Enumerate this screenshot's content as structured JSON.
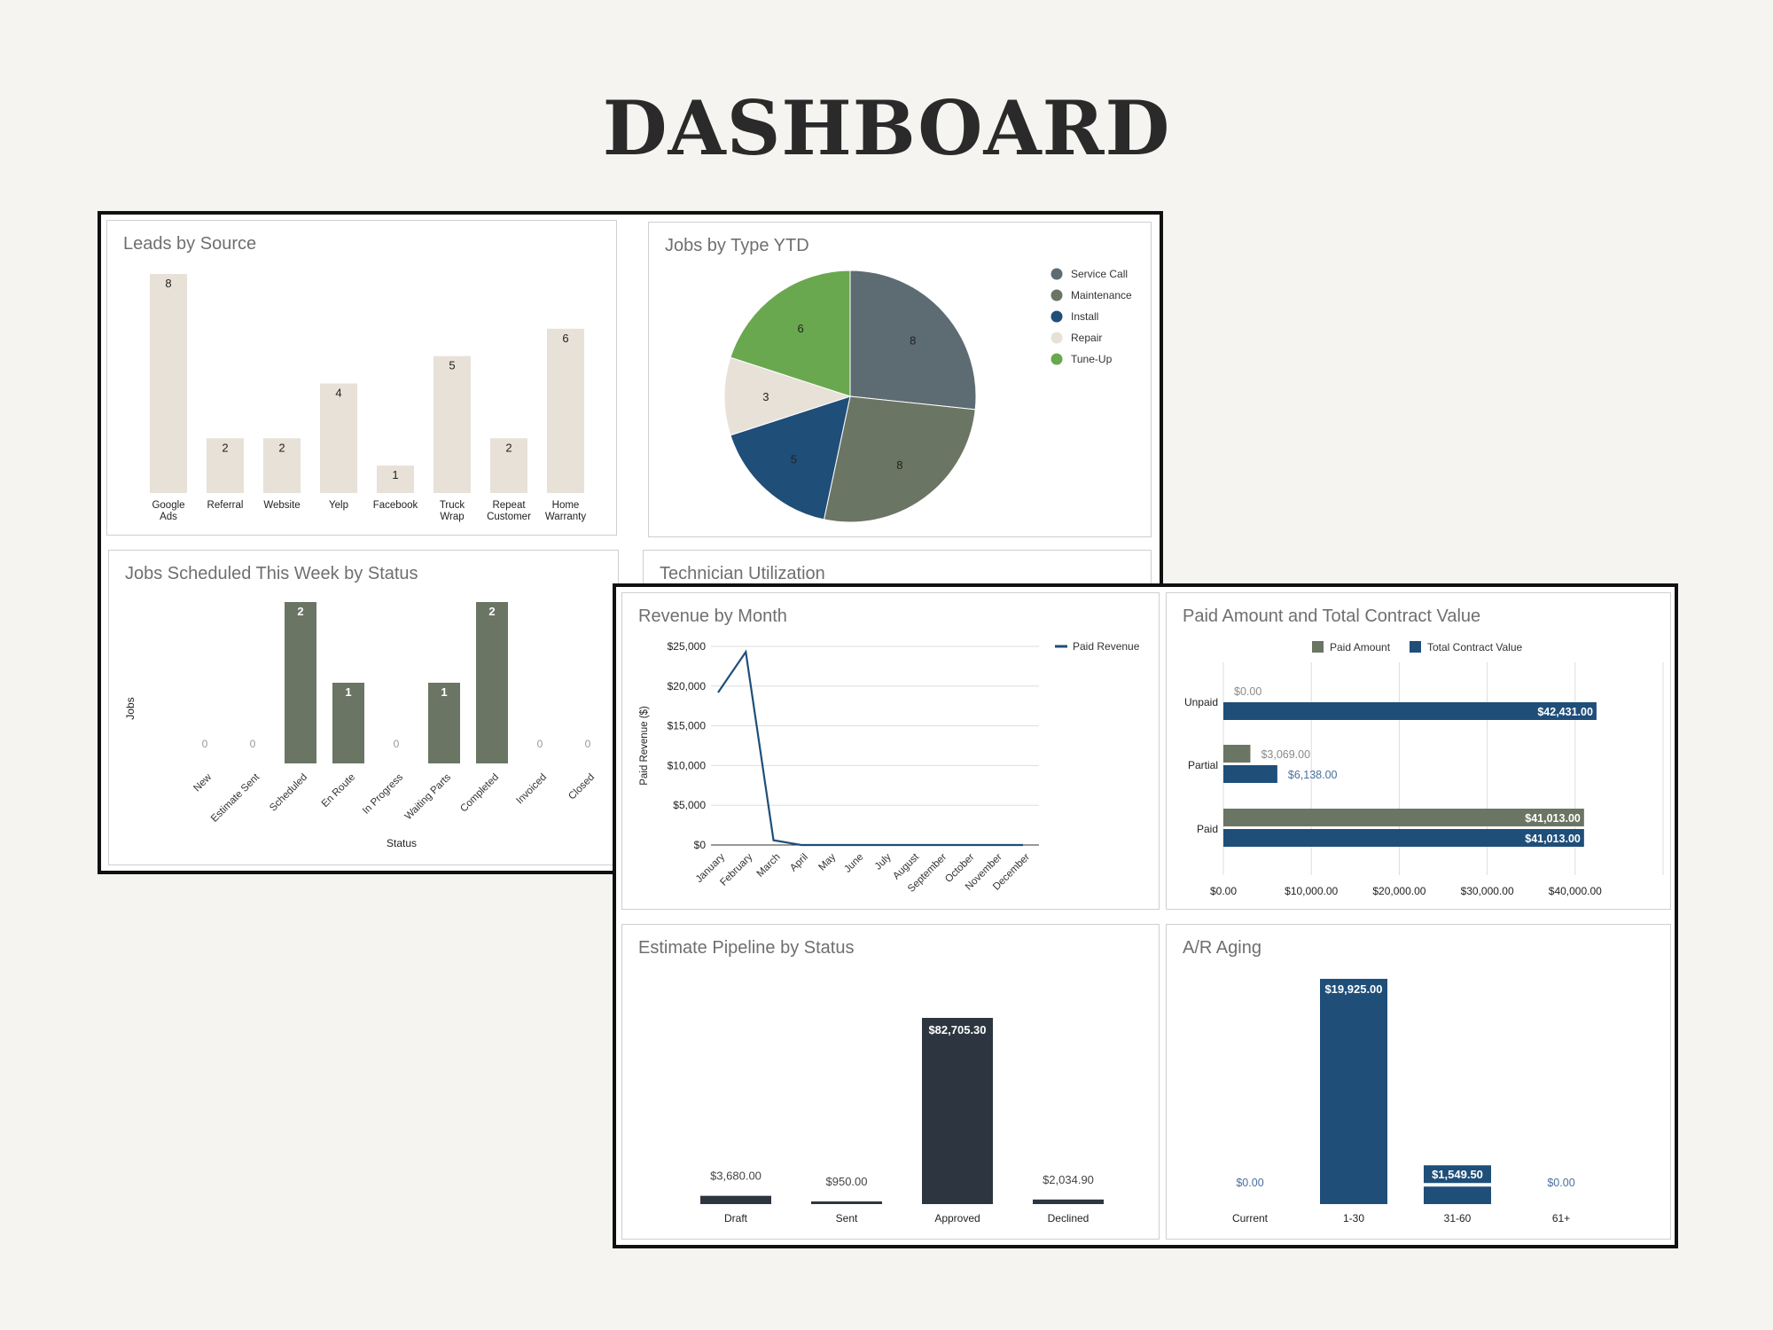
{
  "page_title": "DASHBOARD",
  "chart_data": [
    {
      "id": "leads",
      "type": "bar",
      "title": "Leads by Source",
      "categories": [
        "Google Ads",
        "Referral",
        "Website",
        "Yelp",
        "Facebook",
        "Truck Wrap",
        "Repeat Customer",
        "Home Warranty"
      ],
      "values": [
        8,
        2,
        2,
        4,
        1,
        5,
        2,
        6
      ],
      "ylim": [
        0,
        8
      ],
      "color": "#e7e1d8",
      "grid": false
    },
    {
      "id": "jobs_type",
      "type": "pie",
      "title": "Jobs by Type YTD",
      "labels": [
        "Service Call",
        "Maintenance",
        "Install",
        "Repair",
        "Tune-Up"
      ],
      "values": [
        8,
        8,
        5,
        3,
        6
      ],
      "colors": [
        "#5d6b73",
        "#6b7563",
        "#1f4e79",
        "#e7e1d8",
        "#6aa84f"
      ],
      "legend_position": "right"
    },
    {
      "id": "jobs_status",
      "type": "bar",
      "title": "Jobs Scheduled This Week by Status",
      "categories": [
        "New",
        "Estimate Sent",
        "Scheduled",
        "En Route",
        "In Progress",
        "Waiting Parts",
        "Completed",
        "Invoiced",
        "Closed"
      ],
      "values": [
        0,
        0,
        2,
        1,
        0,
        1,
        2,
        0,
        0
      ],
      "xlabel": "Status",
      "ylabel": "Jobs",
      "ylim": [
        0,
        2
      ],
      "color": "#6b7563"
    },
    {
      "id": "tech_util",
      "type": "bar",
      "title": "Technician Utilization"
    },
    {
      "id": "revenue",
      "type": "line",
      "title": "Revenue by Month",
      "x": [
        "January",
        "February",
        "March",
        "April",
        "May",
        "June",
        "July",
        "August",
        "September",
        "October",
        "November",
        "December"
      ],
      "series": [
        {
          "name": "Paid Revenue",
          "values": [
            19200,
            24300,
            600,
            0,
            0,
            0,
            0,
            0,
            0,
            0,
            0,
            0
          ]
        }
      ],
      "ylabel": "Paid Revenue ($)",
      "ylim": [
        0,
        25000
      ],
      "yticks": [
        "$0",
        "$5,000",
        "$10,000",
        "$15,000",
        "$20,000",
        "$25,000"
      ],
      "color": "#1f4e79",
      "grid": true,
      "legend_position": "right"
    },
    {
      "id": "paid_contract",
      "type": "bar",
      "orientation": "horizontal",
      "title": "Paid Amount and Total Contract Value",
      "categories": [
        "Unpaid",
        "Partial",
        "Paid"
      ],
      "series": [
        {
          "name": "Paid Amount",
          "values": [
            0,
            3069,
            41013
          ],
          "labels": [
            "$0.00",
            "$3,069.00",
            "$41,013.00"
          ],
          "color": "#6b7563"
        },
        {
          "name": "Total Contract Value",
          "values": [
            42431,
            6138,
            41013
          ],
          "labels": [
            "$42,431.00",
            "$6,138.00",
            "$41,013.00"
          ],
          "color": "#1f4e79"
        }
      ],
      "xlim": [
        0,
        50000
      ],
      "xticks": [
        "$0.00",
        "$10,000.00",
        "$20,000.00",
        "$30,000.00",
        "$40,000.00"
      ],
      "legend_position": "top"
    },
    {
      "id": "pipeline",
      "type": "bar",
      "title": "Estimate Pipeline by Status",
      "categories": [
        "Draft",
        "Sent",
        "Approved",
        "Declined"
      ],
      "values": [
        3680,
        950,
        82705.3,
        2034.9
      ],
      "labels": [
        "$3,680.00",
        "$950.00",
        "$82,705.30",
        "$2,034.90"
      ],
      "ylim": [
        0,
        90000
      ],
      "color": "#2d3640"
    },
    {
      "id": "ar_aging",
      "type": "bar",
      "title": "A/R Aging",
      "categories": [
        "Current",
        "1-30",
        "31-60",
        "61+"
      ],
      "values": [
        0,
        19925,
        1549.5,
        0
      ],
      "labels": [
        "$0.00",
        "$19,925.00",
        "$1,549.50",
        "$0.00"
      ],
      "ylim": [
        0,
        20000
      ],
      "color": "#1f4e79"
    }
  ]
}
